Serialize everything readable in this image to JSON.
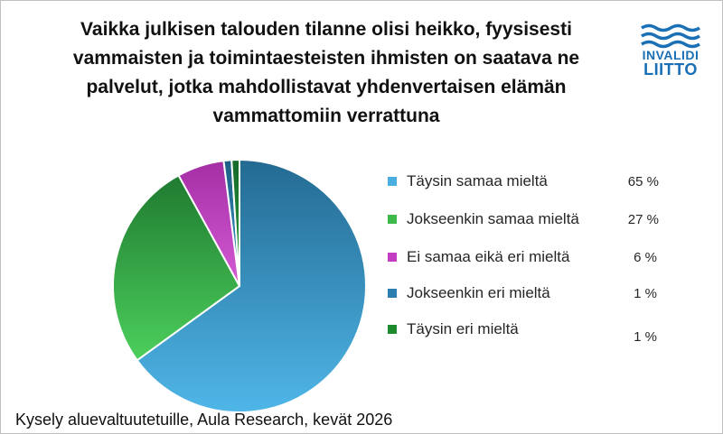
{
  "chart_data": {
    "type": "pie",
    "title": "Vaikka julkisen talouden tilanne olisi heikko, fyysisesti vammaisten ja toimintaesteisten ihmisten on saatava ne palvelut, jotka mahdollistavat yhdenvertaisen elämän vammattomiin verrattuna",
    "categories": [
      "Täysin samaa mieltä",
      "Jokseenkin samaa mieltä",
      "Ei samaa eikä eri mieltä",
      "Jokseenkin eri mieltä",
      "Täysin eri mieltä"
    ],
    "values": [
      65,
      27,
      6,
      1,
      1
    ],
    "value_labels": [
      "65 %",
      "27 %",
      "6 %",
      "1 %",
      "1 %"
    ],
    "colors": [
      "#4aaee0",
      "#3db84a",
      "#c23dc2",
      "#2a7fb0",
      "#1e8a2e"
    ],
    "legend": "right"
  },
  "source": "Kysely aluevaltuutetuille, Aula Research, kevät 2026",
  "logo": {
    "line1": "INVALIDI",
    "line2": "LIITTO",
    "color": "#1a6fb5"
  }
}
